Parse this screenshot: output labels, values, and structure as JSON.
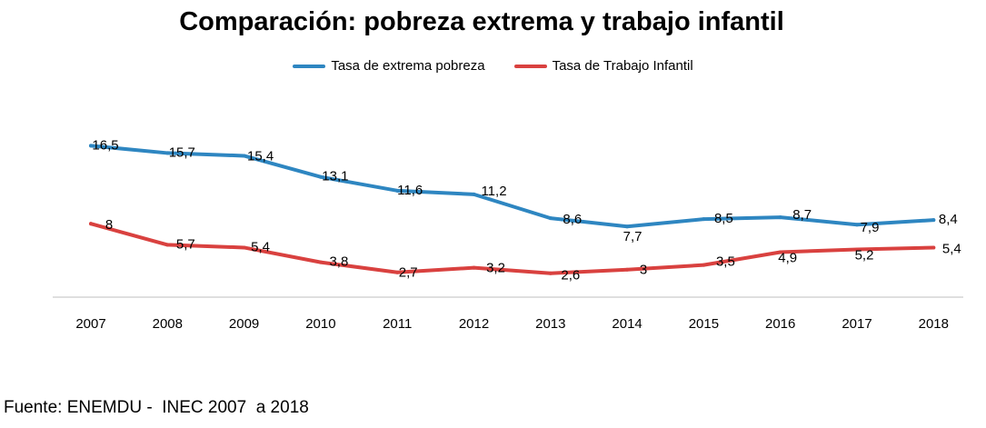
{
  "chart_data": {
    "type": "line",
    "title": "Comparación: pobreza extrema y trabajo infantil",
    "categories": [
      "2007",
      "2008",
      "2009",
      "2010",
      "2011",
      "2012",
      "2013",
      "2014",
      "2015",
      "2016",
      "2017",
      "2018"
    ],
    "series": [
      {
        "name": "Tasa de extrema pobreza",
        "color": "#2E86C1",
        "values": [
          16.5,
          15.7,
          15.4,
          13.1,
          11.6,
          11.2,
          8.6,
          7.7,
          8.5,
          8.7,
          7.9,
          8.4
        ],
        "labels": [
          "16,5",
          "15,7",
          "15,4",
          "13,1",
          "11,6",
          "11,2",
          "8,6",
          "7,7",
          "8,5",
          "8,7",
          "7,9",
          "8,4"
        ]
      },
      {
        "name": "Tasa de Trabajo Infantil",
        "color": "#D9413F",
        "values": [
          8,
          5.7,
          5.4,
          3.8,
          2.7,
          3.2,
          2.6,
          3,
          3.5,
          4.9,
          5.2,
          5.4
        ],
        "labels": [
          "8",
          "5,7",
          "5,4",
          "3,8",
          "2,7",
          "3,2",
          "2,6",
          "3",
          "3,5",
          "4,9",
          "5,2",
          "5,4"
        ]
      }
    ],
    "ylim": [
      0,
      18
    ],
    "grid": false,
    "legend": "top-center",
    "source": "Fuente: ENEMDU -  INEC 2007  a 2018"
  }
}
